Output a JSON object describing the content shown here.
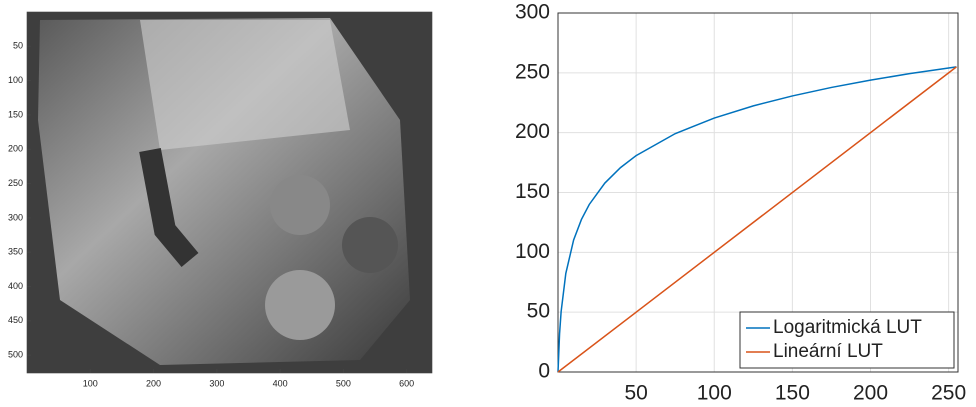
{
  "chart_data": [
    {
      "type": "image",
      "xlim": [
        0,
        640
      ],
      "ylim": [
        0,
        526
      ],
      "xticks": [
        100,
        200,
        300,
        400,
        500,
        600
      ],
      "yticks": [
        50,
        100,
        150,
        200,
        250,
        300,
        350,
        400,
        450,
        500
      ],
      "colormap": "gray"
    },
    {
      "type": "line",
      "xlim": [
        0,
        256
      ],
      "ylim": [
        0,
        300
      ],
      "xticks": [
        50,
        100,
        150,
        200,
        250
      ],
      "yticks": [
        0,
        50,
        100,
        150,
        200,
        250,
        300
      ],
      "grid": true,
      "legend": "lower-right",
      "series": [
        {
          "name": "Logaritmická LUT",
          "color": "#0072bd",
          "x": [
            0,
            1,
            2,
            5,
            10,
            15,
            20,
            30,
            40,
            50,
            75,
            100,
            125,
            150,
            175,
            200,
            225,
            255
          ],
          "values": [
            0,
            31.9,
            50.5,
            82.4,
            110.3,
            127.5,
            140.0,
            157.9,
            170.8,
            180.8,
            199.2,
            212.2,
            222.4,
            230.7,
            237.8,
            243.9,
            249.3,
            255
          ]
        },
        {
          "name": "Lineární LUT",
          "color": "#d95319",
          "x": [
            0,
            255
          ],
          "values": [
            0,
            255
          ]
        }
      ]
    }
  ]
}
